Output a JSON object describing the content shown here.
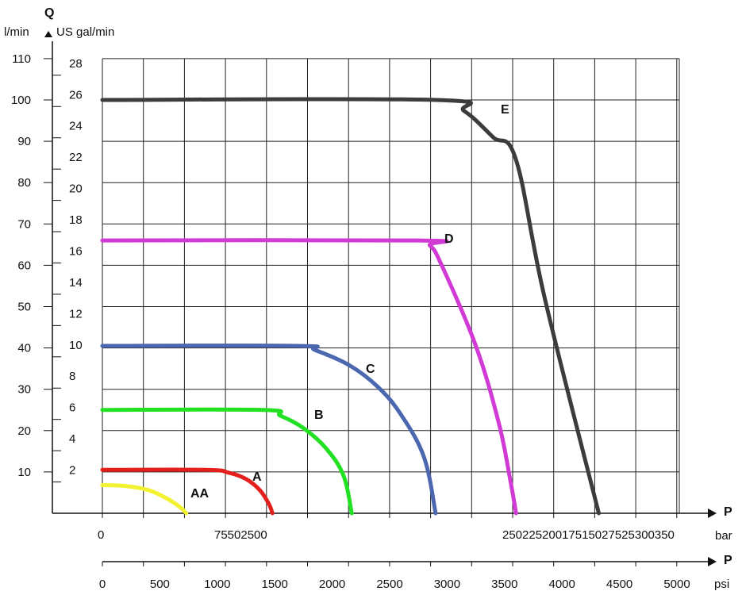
{
  "chart_data": {
    "type": "line",
    "title": "",
    "ylabel": "Q",
    "y_unit_left": "l/min",
    "y_unit_right": "US gal/min",
    "xlabel": "P",
    "x_unit_bar": "bar",
    "x_unit_psi": "psi",
    "ylim": [
      0,
      110
    ],
    "xlim_psi": [
      0,
      5000
    ],
    "grid": true,
    "y_ticks_lpm": [
      "10",
      "20",
      "30",
      "40",
      "50",
      "60",
      "70",
      "80",
      "90",
      "100",
      "110"
    ],
    "y_ticks_gpm": [
      "2",
      "4",
      "6",
      "8",
      "10",
      "12",
      "14",
      "16",
      "18",
      "20",
      "22",
      "24",
      "26",
      "28"
    ],
    "bar_axis_label_zero": "0",
    "bar_axis_labels_left": "75502500",
    "bar_axis_labels_right": "25022520017515027525300350",
    "psi_ticks": [
      "0",
      "500",
      "1000",
      "1500",
      "2000",
      "2500",
      "3000",
      "3500",
      "4000",
      "4500",
      "5000"
    ],
    "series": [
      {
        "name": "AA",
        "color": "#f2f230",
        "points": [
          [
            0,
            6.8
          ],
          [
            200,
            6.6
          ],
          [
            400,
            5.6
          ],
          [
            560,
            3.6
          ],
          [
            680,
            1.4
          ],
          [
            730,
            0
          ]
        ]
      },
      {
        "name": "A",
        "color": "#e3201b",
        "points": [
          [
            0,
            10.5
          ],
          [
            900,
            10.5
          ],
          [
            1100,
            9.8
          ],
          [
            1250,
            8.3
          ],
          [
            1370,
            5.6
          ],
          [
            1450,
            2.2
          ],
          [
            1480,
            0
          ]
        ]
      },
      {
        "name": "B",
        "color": "#22e022",
        "points": [
          [
            0,
            25
          ],
          [
            1400,
            25
          ],
          [
            1550,
            23.6
          ],
          [
            1750,
            20.6
          ],
          [
            1950,
            15.6
          ],
          [
            2100,
            9
          ],
          [
            2170,
            0
          ]
        ]
      },
      {
        "name": "C",
        "color": "#4a67b0",
        "points": [
          [
            0,
            40.5
          ],
          [
            1700,
            40.5
          ],
          [
            1850,
            39.5
          ],
          [
            2150,
            35.8
          ],
          [
            2400,
            30.5
          ],
          [
            2600,
            23.8
          ],
          [
            2800,
            13.5
          ],
          [
            2900,
            0
          ]
        ]
      },
      {
        "name": "D",
        "color": "#d23ad6",
        "points": [
          [
            0,
            66
          ],
          [
            2750,
            66
          ],
          [
            2850,
            64.8
          ],
          [
            2950,
            60.2
          ],
          [
            3250,
            40.5
          ],
          [
            3450,
            21.8
          ],
          [
            3550,
            8
          ],
          [
            3600,
            0
          ]
        ]
      },
      {
        "name": "E",
        "color": "#3c3c3c",
        "points": [
          [
            0,
            100
          ],
          [
            2900,
            100
          ],
          [
            3150,
            97.3
          ],
          [
            3400,
            91
          ],
          [
            3600,
            85.5
          ],
          [
            3850,
            52
          ],
          [
            4320,
            0
          ]
        ]
      }
    ]
  }
}
